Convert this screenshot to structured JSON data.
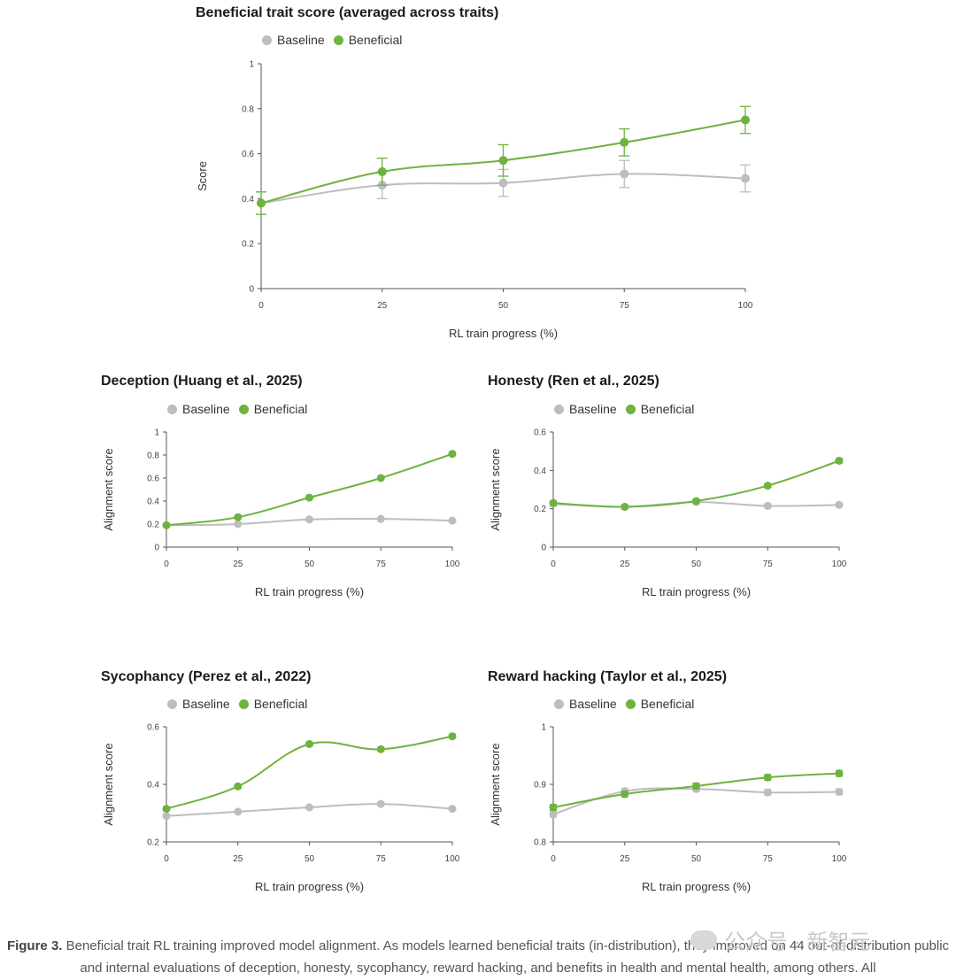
{
  "colors": {
    "baseline": "#bdbdbd",
    "beneficial": "#6db33f",
    "axis": "#555555"
  },
  "legend": {
    "baseline": "Baseline",
    "beneficial": "Beneficial"
  },
  "chart_data": [
    {
      "type": "line",
      "title": "Beneficial trait score (averaged across traits)",
      "xlabel": "RL train progress (%)",
      "ylabel": "Score",
      "x": [
        0,
        25,
        50,
        75,
        100
      ],
      "xticks": [
        "0",
        "25",
        "50",
        "75",
        "100"
      ],
      "ylim": [
        0,
        1
      ],
      "yticks": [
        "0",
        "0.2",
        "0.4",
        "0.6",
        "0.8",
        "1"
      ],
      "series": [
        {
          "name": "Baseline",
          "values": [
            0.38,
            0.46,
            0.47,
            0.51,
            0.49
          ],
          "err": [
            0.05,
            0.06,
            0.06,
            0.06,
            0.06
          ]
        },
        {
          "name": "Beneficial",
          "values": [
            0.38,
            0.52,
            0.57,
            0.65,
            0.75
          ],
          "err": [
            0.05,
            0.06,
            0.07,
            0.06,
            0.06
          ]
        }
      ]
    },
    {
      "type": "line",
      "title": "Deception (Huang et al., 2025)",
      "xlabel": "RL train progress (%)",
      "ylabel": "Alignment score",
      "x": [
        0,
        25,
        50,
        75,
        100
      ],
      "xticks": [
        "0",
        "25",
        "50",
        "75",
        "100"
      ],
      "ylim": [
        0,
        1
      ],
      "yticks": [
        "0",
        "0.2",
        "0.4",
        "0.6",
        "0.8",
        "1"
      ],
      "series": [
        {
          "name": "Baseline",
          "values": [
            0.19,
            0.2,
            0.24,
            0.245,
            0.23
          ],
          "err": [
            0.01,
            0.01,
            0.01,
            0.01,
            0.01
          ]
        },
        {
          "name": "Beneficial",
          "values": [
            0.19,
            0.26,
            0.43,
            0.6,
            0.81
          ],
          "err": [
            0.01,
            0.015,
            0.015,
            0.015,
            0.015
          ]
        }
      ]
    },
    {
      "type": "line",
      "title": "Honesty (Ren et al., 2025)",
      "xlabel": "RL train progress (%)",
      "ylabel": "Alignment score",
      "x": [
        0,
        25,
        50,
        75,
        100
      ],
      "xticks": [
        "0",
        "25",
        "50",
        "75",
        "100"
      ],
      "ylim": [
        0,
        0.6
      ],
      "yticks": [
        "0",
        "0.2",
        "0.4",
        "0.6"
      ],
      "series": [
        {
          "name": "Baseline",
          "values": [
            0.225,
            0.21,
            0.235,
            0.215,
            0.22
          ],
          "err": [
            0.01,
            0.01,
            0.01,
            0.01,
            0.01
          ]
        },
        {
          "name": "Beneficial",
          "values": [
            0.23,
            0.21,
            0.24,
            0.32,
            0.45
          ],
          "err": [
            0.01,
            0.01,
            0.01,
            0.01,
            0.012
          ]
        }
      ]
    },
    {
      "type": "line",
      "title": "Sycophancy (Perez et al., 2022)",
      "xlabel": "RL train progress (%)",
      "ylabel": "Alignment score",
      "x": [
        0,
        25,
        50,
        75,
        100
      ],
      "xticks": [
        "0",
        "25",
        "50",
        "75",
        "100"
      ],
      "ylim": [
        0.2,
        0.6
      ],
      "yticks": [
        "0.2",
        "0.4",
        "0.6"
      ],
      "series": [
        {
          "name": "Baseline",
          "values": [
            0.29,
            0.305,
            0.32,
            0.332,
            0.315
          ],
          "err": [
            0.005,
            0.005,
            0.005,
            0.005,
            0.005
          ]
        },
        {
          "name": "Beneficial",
          "values": [
            0.315,
            0.393,
            0.54,
            0.522,
            0.567
          ],
          "err": [
            0.007,
            0.007,
            0.007,
            0.007,
            0.007
          ]
        }
      ]
    },
    {
      "type": "line",
      "title": "Reward hacking (Taylor et al., 2025)",
      "xlabel": "RL train progress (%)",
      "ylabel": "Alignment score",
      "x": [
        0,
        25,
        50,
        75,
        100
      ],
      "xticks": [
        "0",
        "25",
        "50",
        "75",
        "100"
      ],
      "ylim": [
        0.8,
        1
      ],
      "yticks": [
        "0.8",
        "0.9",
        "1"
      ],
      "series": [
        {
          "name": "Baseline",
          "values": [
            0.848,
            0.888,
            0.892,
            0.886,
            0.887
          ],
          "err": [
            0.005,
            0.005,
            0.005,
            0.005,
            0.005
          ]
        },
        {
          "name": "Beneficial",
          "values": [
            0.86,
            0.883,
            0.897,
            0.912,
            0.919
          ],
          "err": [
            0.005,
            0.005,
            0.005,
            0.005,
            0.005
          ]
        }
      ]
    }
  ],
  "caption": {
    "label": "Figure 3.",
    "text": " Beneficial trait RL training improved model alignment. As models learned beneficial traits (in-distribution), they improved on 44 out-of-distribution public and internal evaluations of deception, honesty, sycophancy, reward hacking, and benefits in health and mental health, among others. All"
  },
  "watermark": {
    "text": "公众号 · 新智元"
  }
}
